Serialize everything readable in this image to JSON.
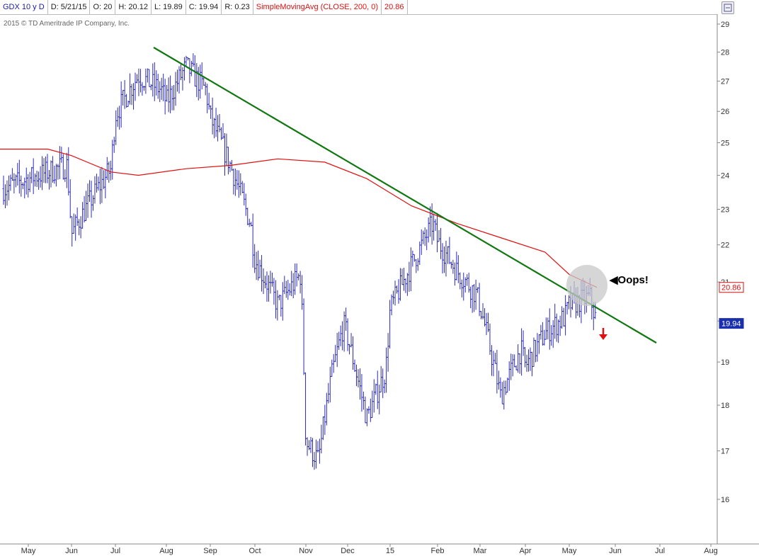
{
  "header": {
    "symbol": "GDX 10 y D",
    "date": "D: 5/21/15",
    "open": "O: 20",
    "high": "H: 20.12",
    "low": "L: 19.89",
    "close": "C: 19.94",
    "range": "R: 0.23",
    "sma_label": "SimpleMovingAvg (CLOSE, 200, 0)",
    "sma_value": "20.86"
  },
  "copyright": "2015 © TD Ameritrade IP Company, Inc.",
  "annotation": {
    "text": "◀Oops!"
  },
  "price_tags": {
    "sma": "20.86",
    "last": "19.94"
  },
  "colors": {
    "bars": "#2a2ab8",
    "sma": "#e01010",
    "trendline": "#117711",
    "arrow": "#e01010",
    "highlight": "#c8c8c8"
  },
  "chart_data": {
    "type": "ohlc-bar",
    "title": "",
    "yscale": "log",
    "ylim": [
      15.2,
      29.5
    ],
    "y_ticks": [
      16,
      17,
      18,
      19,
      20,
      21,
      22,
      23,
      24,
      25,
      26,
      27,
      28,
      29
    ],
    "x_ticks": [
      "May",
      "Jun",
      "Jul",
      "Aug",
      "Sep",
      "Oct",
      "Nov",
      "Dec",
      "15",
      "Feb",
      "Mar",
      "Apr",
      "May",
      "Jun",
      "Jul",
      "Aug"
    ],
    "grid": false,
    "series": [
      {
        "type": "price",
        "points": [
          [
            "May",
            23.9
          ],
          [
            "May",
            24.3
          ],
          [
            "Jun",
            22.3
          ],
          [
            "Jun",
            23.3
          ],
          [
            "Jun",
            24.2
          ],
          [
            "Jul",
            25.9
          ],
          [
            "Jul",
            27.2
          ],
          [
            "Jul",
            26.7
          ],
          [
            "Aug",
            26.3
          ],
          [
            "Aug",
            27.5
          ],
          [
            "Aug",
            26.7
          ],
          [
            "Sep",
            25.8
          ],
          [
            "Sep",
            24.3
          ],
          [
            "Sep",
            22.6
          ],
          [
            "Oct",
            21.6
          ],
          [
            "Oct",
            20.4
          ],
          [
            "Oct",
            21.2
          ],
          [
            "Nov",
            17.2
          ],
          [
            "Nov",
            16.8
          ],
          [
            "Nov",
            18.6
          ],
          [
            "Nov",
            19.9
          ],
          [
            "Dec",
            19.6
          ],
          [
            "Dec",
            17.7
          ],
          [
            "Dec",
            18.8
          ],
          [
            "Jan",
            20.3
          ],
          [
            "Jan",
            22.6
          ],
          [
            "Feb",
            22.1
          ],
          [
            "Feb",
            21.3
          ],
          [
            "Feb",
            20.7
          ],
          [
            "Mar",
            20.4
          ],
          [
            "Mar",
            18.2
          ],
          [
            "Mar",
            19.3
          ],
          [
            "Apr",
            18.9
          ],
          [
            "Apr",
            19.7
          ],
          [
            "Apr",
            20.1
          ],
          [
            "May",
            20.4
          ],
          [
            "May",
            20.6
          ],
          [
            "May",
            19.94
          ]
        ]
      },
      {
        "name": "SimpleMovingAvg (CLOSE, 200, 0)",
        "points": [
          [
            "May",
            24.8
          ],
          [
            "Jun",
            24.6
          ],
          [
            "Jun",
            24.1
          ],
          [
            "Jul",
            24.0
          ],
          [
            "Aug",
            24.2
          ],
          [
            "Sep",
            24.3
          ],
          [
            "Oct",
            24.5
          ],
          [
            "Nov",
            24.4
          ],
          [
            "Dec",
            23.9
          ],
          [
            "Jan",
            23.1
          ],
          [
            "Feb",
            22.6
          ],
          [
            "Mar",
            22.2
          ],
          [
            "Apr",
            21.8
          ],
          [
            "May",
            21.2
          ],
          [
            "May",
            20.86
          ]
        ]
      }
    ]
  }
}
